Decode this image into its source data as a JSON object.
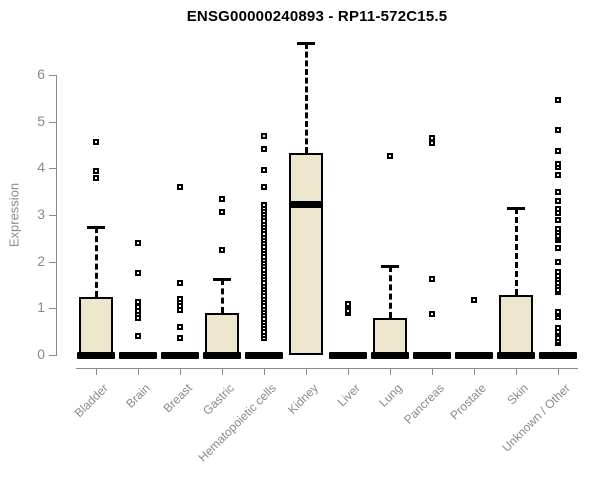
{
  "chart_data": {
    "type": "boxplot",
    "title": "ENSG00000240893 - RP11-572C15.5",
    "ylabel": "Expression",
    "xlabel": "",
    "yticks": [
      0,
      1,
      2,
      3,
      4,
      5,
      6
    ],
    "ylim": [
      0,
      6.9
    ],
    "grid": false,
    "legend": "none",
    "categories": [
      "Bladder",
      "Brain",
      "Breast",
      "Gastric",
      "Hematopoietic cells",
      "Kidney",
      "Liver",
      "Lung",
      "Pancreas",
      "Prostate",
      "Skin",
      "Unknown / Other"
    ],
    "boxes": [
      {
        "category": "Bladder",
        "q1": 0,
        "median": 0,
        "q3": 1.25,
        "whisker_low": 0,
        "whisker_high": 2.75,
        "outliers": [
          3.79,
          3.94,
          4.56
        ]
      },
      {
        "category": "Brain",
        "q1": 0,
        "median": 0,
        "q3": 0,
        "whisker_low": 0,
        "whisker_high": 0,
        "outliers": [
          0.41,
          0.79,
          0.88,
          0.95,
          1.03,
          1.14,
          1.75,
          2.41
        ]
      },
      {
        "category": "Breast",
        "q1": 0,
        "median": 0,
        "q3": 0,
        "whisker_low": 0,
        "whisker_high": 0,
        "outliers": [
          0.36,
          0.61,
          0.96,
          1.05,
          1.14,
          1.21,
          1.54,
          3.59
        ]
      },
      {
        "category": "Gastric",
        "q1": 0,
        "median": 0,
        "q3": 0.9,
        "whisker_low": 0,
        "whisker_high": 1.63,
        "outliers": [
          2.25,
          3.06,
          3.34
        ]
      },
      {
        "category": "Hematopoietic cells",
        "q1": 0,
        "median": 0,
        "q3": 0,
        "whisker_low": 0,
        "whisker_high": 0,
        "outliers": [
          0.36,
          0.43,
          0.5,
          0.57,
          0.64,
          0.71,
          0.78,
          0.85,
          0.92,
          0.99,
          1.06,
          1.13,
          1.2,
          1.27,
          1.34,
          1.41,
          1.48,
          1.55,
          1.62,
          1.69,
          1.76,
          1.83,
          1.9,
          1.97,
          2.04,
          2.11,
          2.18,
          2.25,
          2.32,
          2.39,
          2.46,
          2.53,
          2.6,
          2.67,
          2.74,
          2.81,
          2.88,
          2.95,
          3.02,
          3.09,
          3.16,
          3.21,
          3.59,
          3.96,
          4.41,
          4.69
        ]
      },
      {
        "category": "Kidney",
        "q1": 0,
        "median": 3.23,
        "q3": 4.32,
        "whisker_low": 0,
        "whisker_high": 6.68,
        "outliers": []
      },
      {
        "category": "Liver",
        "q1": 0,
        "median": 0,
        "q3": 0,
        "whisker_low": 0,
        "whisker_high": 0,
        "outliers": [
          0.9,
          0.95,
          1.05,
          1.1
        ]
      },
      {
        "category": "Lung",
        "q1": 0,
        "median": 0,
        "q3": 0.79,
        "whisker_low": 0,
        "whisker_high": 1.9,
        "outliers": [
          4.26
        ]
      },
      {
        "category": "Pancreas",
        "q1": 0,
        "median": 0,
        "q3": 0,
        "whisker_low": 0,
        "whisker_high": 0,
        "outliers": [
          0.87,
          1.62,
          4.55,
          4.65
        ]
      },
      {
        "category": "Prostate",
        "q1": 0,
        "median": 0,
        "q3": 0,
        "whisker_low": 0,
        "whisker_high": 0,
        "outliers": [
          1.18
        ]
      },
      {
        "category": "Skin",
        "q1": 0,
        "median": 0,
        "q3": 1.29,
        "whisker_low": 0,
        "whisker_high": 3.14,
        "outliers": []
      },
      {
        "category": "Unknown / Other",
        "q1": 0,
        "median": 0,
        "q3": 0,
        "whisker_low": 0,
        "whisker_high": 0,
        "outliers": [
          0.25,
          0.31,
          0.37,
          0.44,
          0.5,
          0.57,
          0.82,
          0.88,
          0.93,
          1.35,
          1.4,
          1.47,
          1.55,
          1.62,
          1.7,
          1.78,
          2.0,
          2.29,
          2.46,
          2.5,
          2.56,
          2.63,
          2.7,
          2.89,
          3.05,
          3.12,
          3.29,
          3.5,
          3.86,
          4.02,
          4.1,
          4.38,
          4.82,
          5.46
        ]
      }
    ],
    "colors": {
      "box_fill": "#ECE6CD",
      "box_stroke": "#000000",
      "median": "#000000",
      "whisker": "#000000",
      "outlier": "#000000",
      "axis": "#8a8a8a",
      "tick_label": "#8a8a8a",
      "title": "#000000",
      "background": "#ffffff"
    }
  }
}
